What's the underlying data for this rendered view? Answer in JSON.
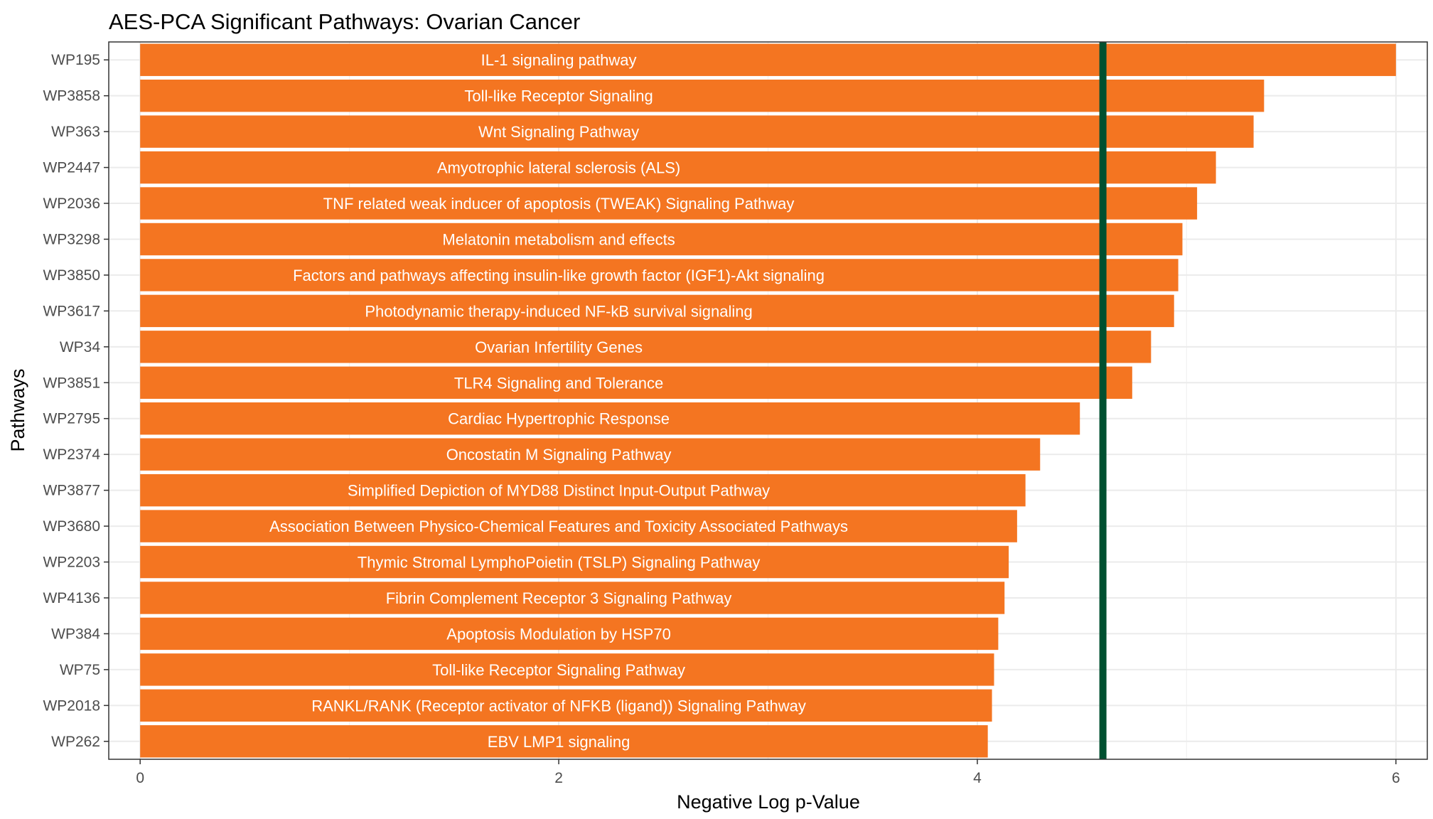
{
  "chart_data": {
    "type": "bar",
    "orientation": "horizontal",
    "title": "AES-PCA Significant Pathways: Ovarian Cancer",
    "xlabel": "Negative Log p-Value",
    "ylabel": "Pathways",
    "xlim": [
      -0.15,
      6.15
    ],
    "xticks": [
      0,
      2,
      4,
      6
    ],
    "grid": true,
    "legend": "none",
    "bar_color": "#f47521",
    "threshold": 4.6,
    "threshold_color": "#005030",
    "categories": [
      "WP195",
      "WP3858",
      "WP363",
      "WP2447",
      "WP2036",
      "WP3298",
      "WP3850",
      "WP3617",
      "WP34",
      "WP3851",
      "WP2795",
      "WP2374",
      "WP3877",
      "WP3680",
      "WP2203",
      "WP4136",
      "WP384",
      "WP75",
      "WP2018",
      "WP262"
    ],
    "values": [
      6.0,
      5.37,
      5.32,
      5.14,
      5.05,
      4.98,
      4.96,
      4.94,
      4.83,
      4.74,
      4.49,
      4.3,
      4.23,
      4.19,
      4.15,
      4.13,
      4.1,
      4.08,
      4.07,
      4.05
    ],
    "bar_labels": [
      "IL-1 signaling pathway",
      "Toll-like Receptor Signaling",
      "Wnt Signaling Pathway",
      "Amyotrophic lateral sclerosis (ALS)",
      "TNF related weak inducer of apoptosis (TWEAK) Signaling Pathway",
      "Melatonin metabolism and effects",
      "Factors and pathways affecting insulin-like growth factor (IGF1)-Akt signaling",
      "Photodynamic therapy-induced NF-kB survival signaling",
      "Ovarian Infertility Genes",
      "TLR4 Signaling and Tolerance",
      "Cardiac Hypertrophic Response",
      "Oncostatin M Signaling Pathway",
      "Simplified Depiction of MYD88 Distinct Input-Output Pathway",
      "Association Between Physico-Chemical Features and Toxicity Associated Pathways",
      "Thymic Stromal LymphoPoietin (TSLP) Signaling Pathway",
      "Fibrin Complement Receptor 3 Signaling Pathway",
      "Apoptosis Modulation by HSP70",
      "Toll-like Receptor Signaling Pathway",
      "RANKL/RANK (Receptor activator of NFKB (ligand)) Signaling Pathway",
      "EBV LMP1 signaling"
    ]
  }
}
